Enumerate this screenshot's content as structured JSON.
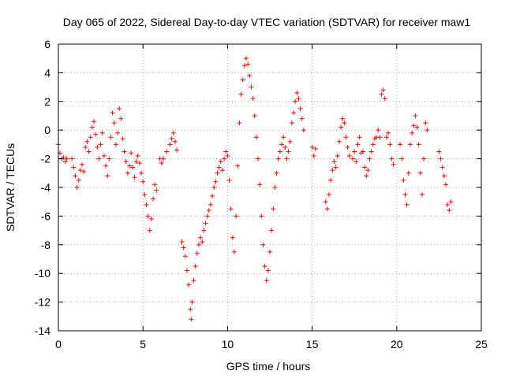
{
  "chart_data": {
    "type": "scatter",
    "title": "Day 065 of 2022, Sidereal Day-to-day VTEC variation (SDTVAR) for receiver maw1",
    "xlabel": "GPS time / hours",
    "ylabel": "SDTVAR / TECUs",
    "xlim": [
      0,
      25
    ],
    "ylim": [
      -14,
      6
    ],
    "x_ticks": [
      0,
      5,
      10,
      15,
      20,
      25
    ],
    "y_ticks": [
      -14,
      -12,
      -10,
      -8,
      -6,
      -4,
      -2,
      0,
      2,
      4,
      6
    ],
    "grid": true,
    "marker": "+",
    "series": [
      {
        "name": "SDTVAR",
        "color": "#ff0000",
        "points": [
          [
            0.0,
            -1.0
          ],
          [
            0.1,
            -1.6
          ],
          [
            0.2,
            -2.0
          ],
          [
            0.3,
            -1.9
          ],
          [
            0.4,
            -2.2
          ],
          [
            0.5,
            -2.0
          ],
          [
            0.8,
            -2.0
          ],
          [
            0.9,
            -2.6
          ],
          [
            1.0,
            -3.2
          ],
          [
            1.1,
            -4.0
          ],
          [
            1.2,
            -3.5
          ],
          [
            1.3,
            -2.8
          ],
          [
            1.4,
            -2.4
          ],
          [
            1.5,
            -2.9
          ],
          [
            1.6,
            -1.2
          ],
          [
            1.7,
            -0.8
          ],
          [
            1.8,
            -1.5
          ],
          [
            1.9,
            -0.5
          ],
          [
            2.0,
            0.2
          ],
          [
            2.1,
            0.6
          ],
          [
            2.2,
            -0.3
          ],
          [
            2.3,
            -1.2
          ],
          [
            2.4,
            -2.0
          ],
          [
            2.5,
            -1.0
          ],
          [
            2.6,
            -0.2
          ],
          [
            2.7,
            -1.8
          ],
          [
            2.8,
            -2.5
          ],
          [
            2.9,
            -3.2
          ],
          [
            3.0,
            -2.0
          ],
          [
            3.1,
            -0.5
          ],
          [
            3.2,
            1.2
          ],
          [
            3.3,
            0.5
          ],
          [
            3.4,
            -1.0
          ],
          [
            3.5,
            -0.2
          ],
          [
            3.6,
            1.5
          ],
          [
            3.7,
            0.8
          ],
          [
            3.8,
            -0.6
          ],
          [
            3.9,
            -1.5
          ],
          [
            4.0,
            -2.2
          ],
          [
            4.1,
            -3.0
          ],
          [
            4.2,
            -2.5
          ],
          [
            4.3,
            -1.6
          ],
          [
            4.4,
            -2.6
          ],
          [
            4.5,
            -3.3
          ],
          [
            4.6,
            -2.2
          ],
          [
            4.7,
            -1.8
          ],
          [
            4.8,
            -2.3
          ],
          [
            4.9,
            -3.0
          ],
          [
            5.0,
            -3.6
          ],
          [
            5.1,
            -4.5
          ],
          [
            5.2,
            -5.2
          ],
          [
            5.3,
            -6.0
          ],
          [
            5.4,
            -7.0
          ],
          [
            5.5,
            -6.2
          ],
          [
            5.6,
            -4.8
          ],
          [
            5.7,
            -3.8
          ],
          [
            5.8,
            -4.2
          ],
          [
            6.0,
            -2.0
          ],
          [
            6.1,
            -2.3
          ],
          [
            6.2,
            -2.0
          ],
          [
            6.4,
            -1.5
          ],
          [
            6.6,
            -1.0
          ],
          [
            6.7,
            -0.6
          ],
          [
            6.8,
            -0.2
          ],
          [
            6.9,
            -0.8
          ],
          [
            7.0,
            -1.4
          ],
          [
            7.3,
            -7.8
          ],
          [
            7.4,
            -8.2
          ],
          [
            7.5,
            -8.8
          ],
          [
            7.6,
            -9.8
          ],
          [
            7.7,
            -10.8
          ],
          [
            7.8,
            -12.5
          ],
          [
            7.85,
            -13.2
          ],
          [
            7.9,
            -12.0
          ],
          [
            8.0,
            -10.5
          ],
          [
            8.1,
            -9.5
          ],
          [
            8.2,
            -8.6
          ],
          [
            8.3,
            -8.0
          ],
          [
            8.4,
            -7.5
          ],
          [
            8.5,
            -7.8
          ],
          [
            8.6,
            -7.0
          ],
          [
            8.7,
            -6.5
          ],
          [
            8.8,
            -6.0
          ],
          [
            8.9,
            -5.6
          ],
          [
            9.0,
            -5.2
          ],
          [
            9.1,
            -4.6
          ],
          [
            9.2,
            -4.0
          ],
          [
            9.3,
            -3.6
          ],
          [
            9.4,
            -3.0
          ],
          [
            9.5,
            -2.6
          ],
          [
            9.6,
            -2.2
          ],
          [
            9.7,
            -2.8
          ],
          [
            9.8,
            -2.0
          ],
          [
            9.9,
            -1.5
          ],
          [
            10.0,
            -1.8
          ],
          [
            10.1,
            -3.5
          ],
          [
            10.2,
            -5.5
          ],
          [
            10.3,
            -7.5
          ],
          [
            10.4,
            -8.5
          ],
          [
            10.5,
            -6.0
          ],
          [
            10.6,
            -2.5
          ],
          [
            10.7,
            0.5
          ],
          [
            10.8,
            2.5
          ],
          [
            10.9,
            3.5
          ],
          [
            11.0,
            4.5
          ],
          [
            11.1,
            5.0
          ],
          [
            11.2,
            4.6
          ],
          [
            11.3,
            3.8
          ],
          [
            11.4,
            3.0
          ],
          [
            11.5,
            2.2
          ],
          [
            11.6,
            1.0
          ],
          [
            11.7,
            -0.5
          ],
          [
            11.8,
            -2.0
          ],
          [
            11.9,
            -3.8
          ],
          [
            12.0,
            -6.0
          ],
          [
            12.1,
            -8.0
          ],
          [
            12.2,
            -9.5
          ],
          [
            12.3,
            -10.5
          ],
          [
            12.4,
            -9.8
          ],
          [
            12.5,
            -8.5
          ],
          [
            12.6,
            -7.0
          ],
          [
            12.7,
            -5.5
          ],
          [
            12.8,
            -4.0
          ],
          [
            12.9,
            -3.0
          ],
          [
            13.0,
            -2.0
          ],
          [
            13.1,
            -1.5
          ],
          [
            13.2,
            -1.0
          ],
          [
            13.3,
            -0.5
          ],
          [
            13.4,
            -1.2
          ],
          [
            13.5,
            -2.0
          ],
          [
            13.6,
            -1.5
          ],
          [
            13.7,
            -0.8
          ],
          [
            13.8,
            0.5
          ],
          [
            13.9,
            1.2
          ],
          [
            14.0,
            2.0
          ],
          [
            14.1,
            2.6
          ],
          [
            14.2,
            2.2
          ],
          [
            14.3,
            1.5
          ],
          [
            14.4,
            0.8
          ],
          [
            14.5,
            0.0
          ],
          [
            15.0,
            -1.2
          ],
          [
            15.1,
            -1.8
          ],
          [
            15.2,
            -1.3
          ],
          [
            15.8,
            -5.0
          ],
          [
            15.9,
            -5.5
          ],
          [
            16.0,
            -4.5
          ],
          [
            16.1,
            -3.5
          ],
          [
            16.2,
            -2.8
          ],
          [
            16.3,
            -2.2
          ],
          [
            16.4,
            -2.6
          ],
          [
            16.5,
            -1.8
          ],
          [
            16.6,
            -0.8
          ],
          [
            16.7,
            0.2
          ],
          [
            16.8,
            0.8
          ],
          [
            16.9,
            0.5
          ],
          [
            17.0,
            -0.5
          ],
          [
            17.1,
            -1.2
          ],
          [
            17.2,
            -1.8
          ],
          [
            17.4,
            -2.0
          ],
          [
            17.5,
            -1.5
          ],
          [
            17.6,
            -2.2
          ],
          [
            17.7,
            -1.0
          ],
          [
            17.8,
            -0.5
          ],
          [
            17.9,
            -1.6
          ],
          [
            18.0,
            -1.5
          ],
          [
            18.1,
            -2.6
          ],
          [
            18.2,
            -3.2
          ],
          [
            18.3,
            -2.8
          ],
          [
            18.4,
            -2.0
          ],
          [
            18.5,
            -1.5
          ],
          [
            18.6,
            -1.0
          ],
          [
            18.7,
            -0.6
          ],
          [
            18.8,
            -0.5
          ],
          [
            18.9,
            0.0
          ],
          [
            19.0,
            -0.5
          ],
          [
            19.1,
            2.5
          ],
          [
            19.2,
            2.8
          ],
          [
            19.3,
            2.2
          ],
          [
            19.4,
            -0.5
          ],
          [
            19.5,
            -0.2
          ],
          [
            19.6,
            -1.0
          ],
          [
            19.7,
            -2.0
          ],
          [
            19.8,
            -2.4
          ],
          [
            20.2,
            -1.0
          ],
          [
            20.3,
            -2.0
          ],
          [
            20.4,
            -3.5
          ],
          [
            20.5,
            -4.5
          ],
          [
            20.6,
            -5.2
          ],
          [
            20.7,
            -3.0
          ],
          [
            20.8,
            -1.0
          ],
          [
            20.9,
            -0.2
          ],
          [
            21.0,
            0.3
          ],
          [
            21.1,
            1.0
          ],
          [
            21.2,
            0.2
          ],
          [
            21.3,
            -1.0
          ],
          [
            21.4,
            -3.0
          ],
          [
            21.5,
            -4.5
          ],
          [
            21.6,
            -2.0
          ],
          [
            21.7,
            0.5
          ],
          [
            21.8,
            0.0
          ],
          [
            22.5,
            -1.5
          ],
          [
            22.6,
            -2.0
          ],
          [
            22.7,
            -2.6
          ],
          [
            22.8,
            -3.2
          ],
          [
            22.9,
            -3.8
          ],
          [
            23.0,
            -5.2
          ],
          [
            23.1,
            -5.6
          ],
          [
            23.2,
            -5.0
          ]
        ]
      }
    ]
  }
}
